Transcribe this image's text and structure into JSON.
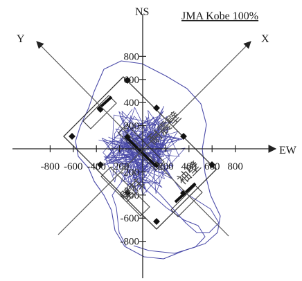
{
  "title": "JMA Kobe 100%",
  "axes": {
    "vertical_name": "NS",
    "horizontal_name": "EW",
    "diag_up_right_name": "X",
    "diag_up_left_name": "Y",
    "ticks_horizontal": [
      "-800",
      "-600",
      "-400",
      "-200",
      "200",
      "400",
      "600",
      "800"
    ],
    "ticks_vertical": [
      "800",
      "600",
      "400",
      "200",
      "-200",
      "-400",
      "-600",
      "-800"
    ]
  },
  "labels": {
    "label_upper": "耐震壁",
    "label_lower_left": "壁柱",
    "label_lower_right": "袖壁"
  },
  "colors": {
    "orbit": "#4a4aa8",
    "axis": "#222222",
    "diagonal": "#555555",
    "building": "#333333"
  }
}
